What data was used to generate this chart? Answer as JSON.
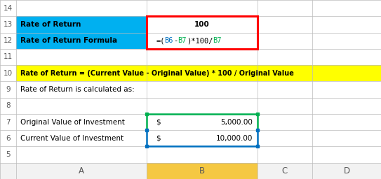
{
  "fig_width": 5.43,
  "fig_height": 2.56,
  "dpi": 100,
  "bg_color": "#ffffff",
  "header_bg": "#f2f2f2",
  "col_header_B_bg": "#f5c842",
  "col_header_text": "#595959",
  "cyan_color": "#00b0f0",
  "yellow_color": "#ffff00",
  "red_border_color": "#ff0000",
  "blue_border_color": "#0070c0",
  "green_border_color": "#00b050",
  "row_labels": [
    "5",
    "6",
    "7",
    "8",
    "9",
    "10",
    "11",
    "12",
    "13",
    "14"
  ],
  "col_headers": [
    "A",
    "B",
    "C",
    "D"
  ],
  "row6_A": "Current Value of Investment",
  "row7_A": "Original Value of Investment",
  "row6_B_dollar": "$",
  "row6_B_val": "10,000.00",
  "row7_B_dollar": "$",
  "row7_B_val": "5,000.00",
  "row9_text": "Rate of Return is calculated as:",
  "row10_text": "Rate of Return = (Current Value - Original Value) * 100 / Original Value",
  "row12_A": "Rate of Return Formula",
  "row13_A": "Rate of Return",
  "row13_B": "100",
  "formula_parts": [
    {
      "text": "=(",
      "color": "#000000"
    },
    {
      "text": "B6",
      "color": "#0070c0"
    },
    {
      "text": "-",
      "color": "#000000"
    },
    {
      "text": "B7",
      "color": "#00b050"
    },
    {
      "text": ")*100/",
      "color": "#000000"
    },
    {
      "text": "B7",
      "color": "#00b050"
    }
  ]
}
